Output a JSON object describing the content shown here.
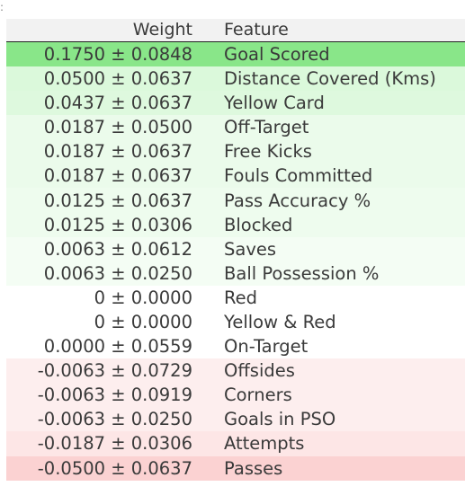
{
  "header": {
    "weight_label": "Weight",
    "feature_label": "Feature"
  },
  "rows": [
    {
      "weight": "0.1750 ± 0.0848",
      "feature": "Goal Scored",
      "color": "#89e689"
    },
    {
      "weight": "0.0500 ± 0.0637",
      "feature": "Distance Covered (Kms)",
      "color": "#dbf9db"
    },
    {
      "weight": "0.0437 ± 0.0637",
      "feature": "Yellow Card",
      "color": "#def9de"
    },
    {
      "weight": "0.0187 ± 0.0500",
      "feature": "Off-Target",
      "color": "#ebfbeb"
    },
    {
      "weight": "0.0187 ± 0.0637",
      "feature": "Free Kicks",
      "color": "#ebfbeb"
    },
    {
      "weight": "0.0187 ± 0.0637",
      "feature": "Fouls Committed",
      "color": "#ebfbeb"
    },
    {
      "weight": "0.0125 ± 0.0637",
      "feature": "Pass Accuracy %",
      "color": "#eefcee"
    },
    {
      "weight": "0.0125 ± 0.0306",
      "feature": "Blocked",
      "color": "#eefcee"
    },
    {
      "weight": "0.0063 ± 0.0612",
      "feature": "Saves",
      "color": "#f4fdf4"
    },
    {
      "weight": "0.0063 ± 0.0250",
      "feature": "Ball Possession %",
      "color": "#f4fdf4"
    },
    {
      "weight": "0 ± 0.0000",
      "feature": "Red",
      "color": "#ffffff"
    },
    {
      "weight": "0 ± 0.0000",
      "feature": "Yellow & Red",
      "color": "#ffffff"
    },
    {
      "weight": "0.0000 ± 0.0559",
      "feature": "On-Target",
      "color": "#ffffff"
    },
    {
      "weight": "-0.0063 ± 0.0729",
      "feature": "Offsides",
      "color": "#fdeeee"
    },
    {
      "weight": "-0.0063 ± 0.0919",
      "feature": "Corners",
      "color": "#fdeeee"
    },
    {
      "weight": "-0.0063 ± 0.0250",
      "feature": "Goals in PSO",
      "color": "#fdeeee"
    },
    {
      "weight": "-0.0187 ± 0.0306",
      "feature": "Attempts",
      "color": "#fde6e6"
    },
    {
      "weight": "-0.0500 ± 0.0637",
      "feature": "Passes",
      "color": "#fbd2d2"
    }
  ]
}
